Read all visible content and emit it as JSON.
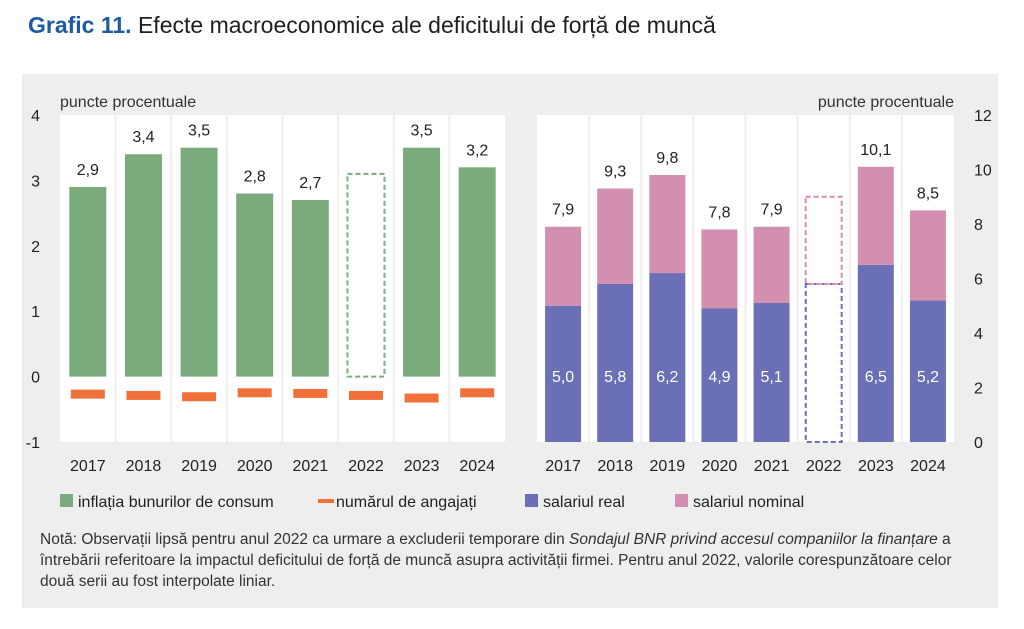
{
  "title": {
    "number": "Grafic 11.",
    "text": "Efecte macroeconomice ale deficitului de forță de muncă"
  },
  "chart_data": [
    {
      "type": "bar",
      "ylabel": "puncte procentuale",
      "ylim": [
        -1,
        4
      ],
      "yticks": [
        "4",
        "3",
        "2",
        "1",
        "0",
        "-1"
      ],
      "categories": [
        "2017",
        "2018",
        "2019",
        "2020",
        "2021",
        "2022",
        "2023",
        "2024"
      ],
      "series": [
        {
          "name": "inflația bunurilor de consum",
          "values": [
            2.9,
            3.4,
            3.5,
            2.8,
            2.7,
            3.1,
            3.5,
            3.2
          ],
          "labels": [
            "2,9",
            "3,4",
            "3,5",
            "2,8",
            "2,7",
            "",
            "3,5",
            "3,2"
          ],
          "color": "#7bab7c",
          "interpolated_index": 5
        },
        {
          "name": "numărul de angajați",
          "values": [
            -0.26,
            -0.28,
            -0.3,
            -0.24,
            -0.25,
            -0.28,
            -0.32,
            -0.24
          ],
          "color": "#f0703a"
        }
      ]
    },
    {
      "type": "stacked-bar",
      "ylabel": "puncte procentuale",
      "ylim": [
        0,
        12
      ],
      "yticks": [
        "12",
        "10",
        "8",
        "6",
        "4",
        "2",
        "0"
      ],
      "categories": [
        "2017",
        "2018",
        "2019",
        "2020",
        "2021",
        "2022",
        "2023",
        "2024"
      ],
      "series": [
        {
          "name": "salariul real",
          "values": [
            5.0,
            5.8,
            6.2,
            4.9,
            5.1,
            5.8,
            6.5,
            5.2
          ],
          "labels": [
            "5,0",
            "5,8",
            "6,2",
            "4,9",
            "5,1",
            "",
            "6,5",
            "5,2"
          ],
          "color": "#6b6fb5"
        },
        {
          "name": "salariul nominal",
          "totals": [
            7.9,
            9.3,
            9.8,
            7.8,
            7.9,
            9.0,
            10.1,
            8.5
          ],
          "labels": [
            "7,9",
            "9,3",
            "9,8",
            "7,8",
            "7,9",
            "",
            "10,1",
            "8,5"
          ],
          "color": "#d28fb0"
        }
      ],
      "interpolated_index": 5
    }
  ],
  "legend": [
    {
      "label": "inflația bunurilor de consum",
      "color": "#7bab7c",
      "shape": "square"
    },
    {
      "label": "numărul de angajați",
      "color": "#f0703a",
      "shape": "line"
    },
    {
      "label": "salariul real",
      "color": "#6b6fb5",
      "shape": "square"
    },
    {
      "label": "salariul nominal",
      "color": "#d28fb0",
      "shape": "square"
    }
  ],
  "note": {
    "prefix": "Notă: Observații lipsă pentru anul 2022 ca urmare a excluderii temporare din ",
    "italic": "Sondajul BNR privind accesul companiilor la finanțare",
    "suffix": " a întrebării referitoare la impactul deficitului de forță de muncă asupra activității firmei. Pentru anul 2022, valorile corespunzătoare celor două serii au fost interpolate liniar."
  }
}
